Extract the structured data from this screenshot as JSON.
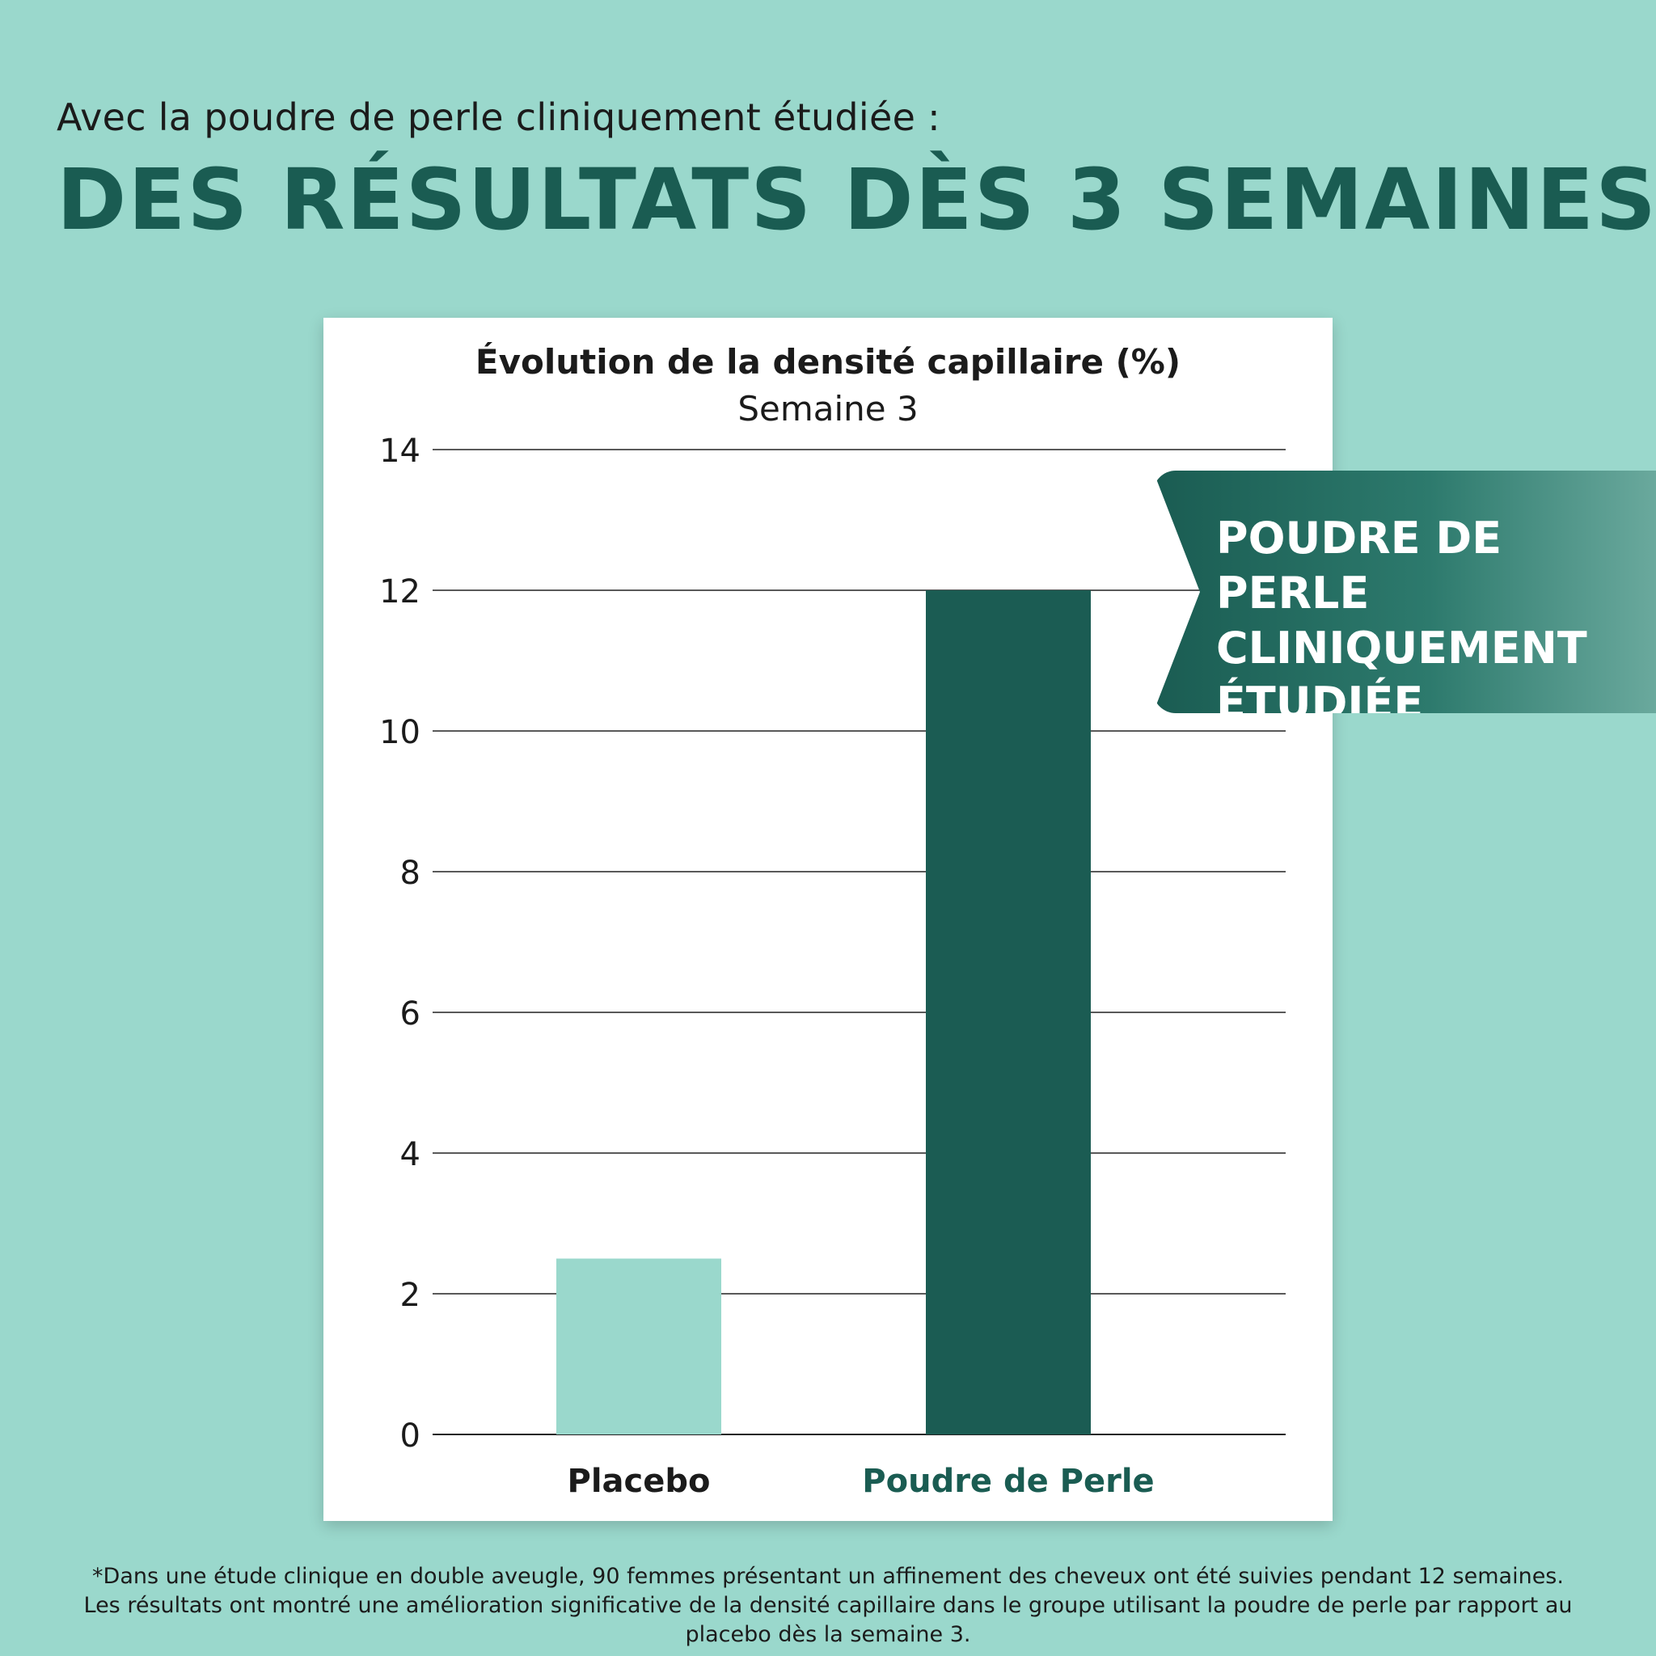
{
  "header": {
    "intro": "Avec la poudre de perle cliniquement étudiée :",
    "headline": "DES RÉSULTATS DÈS 3 SEMAINES"
  },
  "ribbon": {
    "text": "POUDRE DE PERLE\nCLINIQUEMENT\nÉTUDIÉE"
  },
  "footnote": "*Dans une étude clinique en double aveugle, 90 femmes présentant un affinement des cheveux ont été suivies pendant 12 semaines. Les résultats ont montré une amélioration significative de la densité capillaire dans le groupe utilisant la poudre de perle par rapport au placebo dès la semaine 3.",
  "colors": {
    "background": "#9ad8cc",
    "accent": "#1a5c52",
    "placebo_bar": "#9ad8cc",
    "perle_bar": "#1b5c53"
  },
  "chart_data": {
    "type": "bar",
    "title": "Évolution de la densité capillaire (%)",
    "subtitle": "Semaine 3",
    "categories": [
      "Placebo",
      "Poudre de Perle"
    ],
    "values": [
      2.5,
      12
    ],
    "ylim": [
      0,
      14
    ],
    "yticks": [
      0,
      2,
      4,
      6,
      8,
      10,
      12,
      14
    ],
    "grid": true
  }
}
